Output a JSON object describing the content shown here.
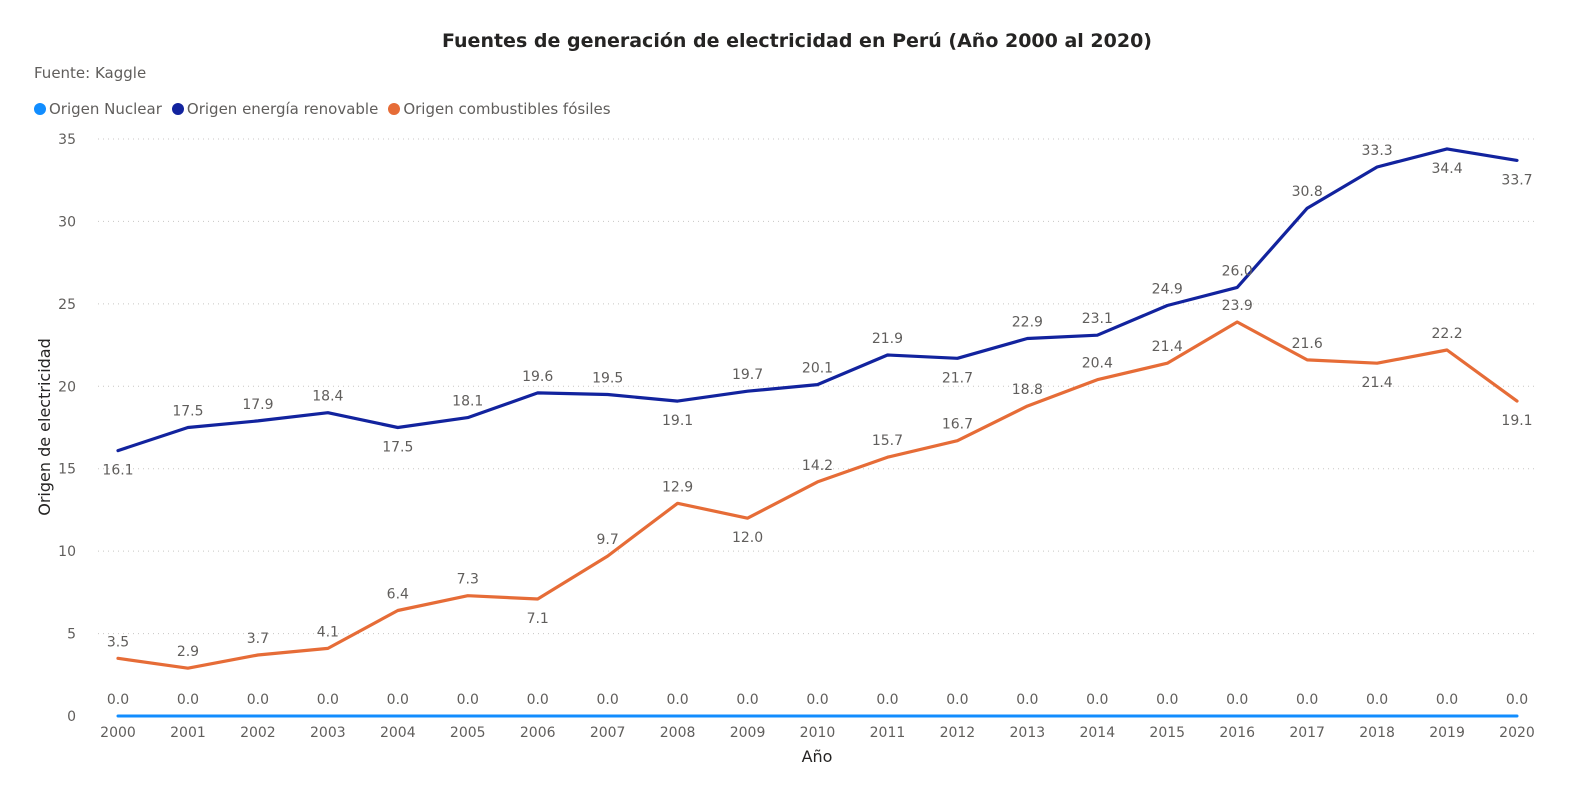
{
  "chart_data": {
    "type": "line",
    "title": "Fuentes de generación de electricidad en Perú (Año 2000 al 2020)",
    "subtitle": "Fuente: Kaggle",
    "xlabel": "Año",
    "ylabel": "Origen de electricidad",
    "ylim": [
      0,
      35
    ],
    "yticks": [
      "0",
      "5",
      "10",
      "15",
      "20",
      "25",
      "30",
      "35"
    ],
    "grid": "horizontal dotted",
    "legend_position": "top-left",
    "categories": [
      "2000",
      "2001",
      "2002",
      "2003",
      "2004",
      "2005",
      "2006",
      "2007",
      "2008",
      "2009",
      "2010",
      "2011",
      "2012",
      "2013",
      "2014",
      "2015",
      "2016",
      "2017",
      "2018",
      "2019",
      "2020"
    ],
    "series": [
      {
        "name": "Origen Nuclear",
        "color": "#118dff",
        "values": [
          0,
          0,
          0,
          0,
          0,
          0,
          0,
          0,
          0,
          0,
          0,
          0,
          0,
          0,
          0,
          0,
          0,
          0,
          0,
          0,
          0
        ],
        "labels": [
          "0.0",
          "0.0",
          "0.0",
          "0.0",
          "0.0",
          "0.0",
          "0.0",
          "0.0",
          "0.0",
          "0.0",
          "0.0",
          "0.0",
          "0.0",
          "0.0",
          "0.0",
          "0.0",
          "0.0",
          "0.0",
          "0.0",
          "0.0",
          "0.0"
        ],
        "label_pos": [
          "above",
          "above",
          "above",
          "above",
          "above",
          "above",
          "above",
          "above",
          "above",
          "above",
          "above",
          "above",
          "above",
          "above",
          "above",
          "above",
          "above",
          "above",
          "above",
          "above",
          "above"
        ]
      },
      {
        "name": "Origen energía renovable",
        "color": "#12239e",
        "values": [
          16.1,
          17.5,
          17.9,
          18.4,
          17.5,
          18.1,
          19.6,
          19.5,
          19.1,
          19.7,
          20.1,
          21.9,
          21.7,
          22.9,
          23.1,
          24.9,
          26.0,
          30.8,
          33.3,
          34.4,
          33.7
        ],
        "labels": [
          "16.1",
          "17.5",
          "17.9",
          "18.4",
          "17.5",
          "18.1",
          "19.6",
          "19.5",
          "19.1",
          "19.7",
          "20.1",
          "21.9",
          "21.7",
          "22.9",
          "23.1",
          "24.9",
          "26.0",
          "30.8",
          "33.3",
          "34.4",
          "33.7"
        ],
        "label_pos": [
          "below",
          "above",
          "above",
          "above",
          "below",
          "above",
          "above",
          "above",
          "below",
          "above",
          "above",
          "above",
          "below",
          "above",
          "above",
          "above",
          "above",
          "above",
          "above",
          "below",
          "below"
        ]
      },
      {
        "name": "Origen combustibles fósiles",
        "color": "#e66c37",
        "values": [
          3.5,
          2.9,
          3.7,
          4.1,
          6.4,
          7.3,
          7.1,
          9.7,
          12.9,
          12.0,
          14.2,
          15.7,
          16.7,
          18.8,
          20.4,
          21.4,
          23.9,
          21.6,
          21.4,
          22.2,
          19.1
        ],
        "labels": [
          "3.5",
          "2.9",
          "3.7",
          "4.1",
          "6.4",
          "7.3",
          "7.1",
          "9.7",
          "12.9",
          "12.0",
          "14.2",
          "15.7",
          "16.7",
          "18.8",
          "20.4",
          "21.4",
          "23.9",
          "21.6",
          "21.4",
          "22.2",
          "19.1"
        ],
        "label_pos": [
          "above",
          "above",
          "above",
          "above",
          "above",
          "above",
          "below",
          "above",
          "above",
          "below",
          "above",
          "above",
          "above",
          "above",
          "above",
          "above",
          "above",
          "above",
          "below",
          "above",
          "below"
        ]
      }
    ]
  }
}
